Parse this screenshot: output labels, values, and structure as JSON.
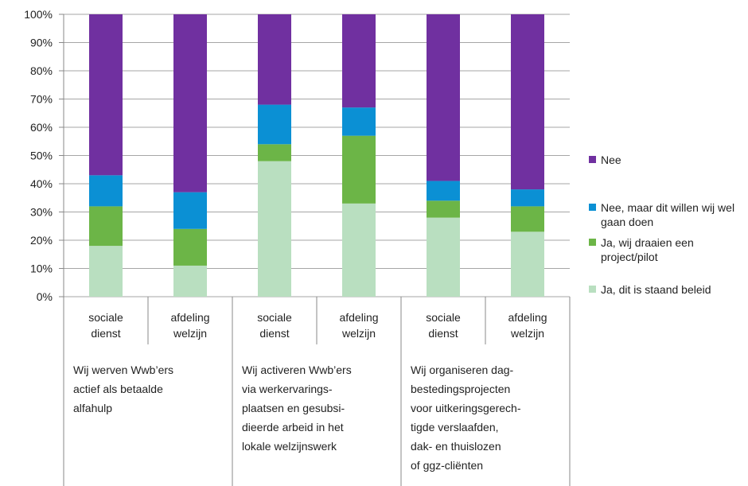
{
  "chart_data": {
    "type": "stacked_bar",
    "categories": [
      "sociale dienst",
      "afdeling welzijn",
      "sociale dienst",
      "afdeling welzijn",
      "sociale dienst",
      "afdeling welzijn"
    ],
    "groups": [
      {
        "lines": [
          "Wij werven Wwb’ers",
          "actief als betaalde",
          "alfahulp"
        ]
      },
      {
        "lines": [
          "Wij activeren Wwb’ers",
          "via werkervarings-",
          "plaatsen en gesubsi-",
          "dieerde arbeid in het",
          "lokale welzijnswerk"
        ]
      },
      {
        "lines": [
          "Wij organiseren dag-",
          "bestedingsprojecten",
          "voor uitkeringsgerech-",
          "tigde verslaafden,",
          "dak- en thuislozen",
          "of ggz-cliënten"
        ]
      }
    ],
    "series": [
      {
        "name": "Ja, dit is staand beleid",
        "color": "#b9dfc0",
        "values": [
          18,
          11,
          48,
          33,
          28,
          23
        ]
      },
      {
        "name": "Ja, wij draaien een project/pilot",
        "color": "#6cb547",
        "values": [
          14,
          13,
          6,
          24,
          6,
          9
        ]
      },
      {
        "name": "Nee, maar dit willen wij wel gaan doen",
        "color": "#0b90d4",
        "values": [
          11,
          13,
          14,
          10,
          7,
          6
        ]
      },
      {
        "name": "Nee",
        "color": "#7030a0",
        "values": [
          57,
          63,
          32,
          33,
          59,
          62
        ]
      }
    ],
    "ylim": [
      0,
      100
    ],
    "yticks": [
      {
        "value": 0,
        "label": "0%"
      },
      {
        "value": 10,
        "label": "10%"
      },
      {
        "value": 20,
        "label": "20%"
      },
      {
        "value": 30,
        "label": "30%"
      },
      {
        "value": 40,
        "label": "40%"
      },
      {
        "value": 50,
        "label": "50%"
      },
      {
        "value": 60,
        "label": "60%"
      },
      {
        "value": 70,
        "label": "70%"
      },
      {
        "value": 80,
        "label": "80%"
      },
      {
        "value": 90,
        "label": "90%"
      },
      {
        "value": 100,
        "label": "100%"
      }
    ],
    "grid": true
  }
}
